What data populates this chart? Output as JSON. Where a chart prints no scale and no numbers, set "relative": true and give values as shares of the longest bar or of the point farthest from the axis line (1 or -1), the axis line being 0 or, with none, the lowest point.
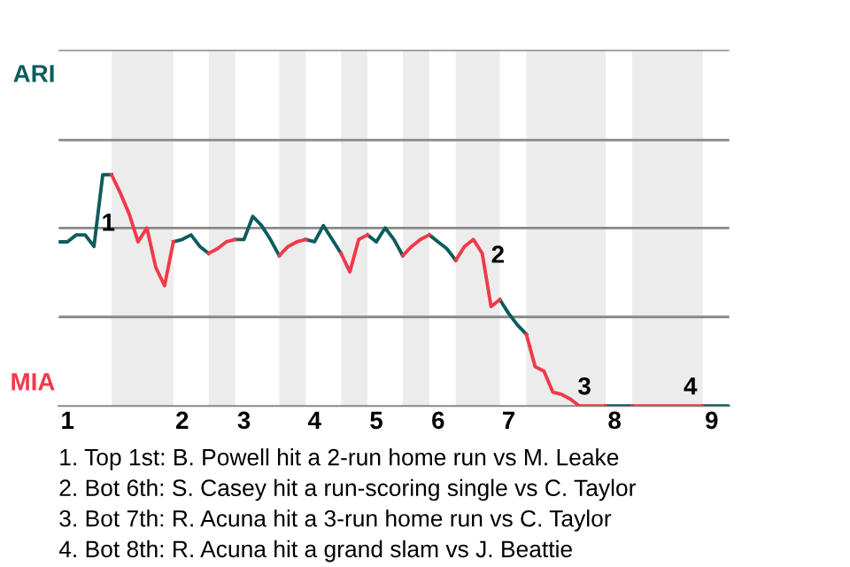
{
  "chart_data": {
    "type": "line",
    "relative": true,
    "categories": [
      null,
      "1",
      null,
      null,
      null,
      null,
      null,
      null,
      null,
      null,
      null,
      null,
      null,
      null,
      "2",
      null,
      null,
      null,
      null,
      null,
      null,
      "3",
      null,
      null,
      null,
      null,
      null,
      null,
      null,
      "4",
      null,
      null,
      null,
      null,
      null,
      null,
      "5",
      null,
      null,
      null,
      null,
      null,
      null,
      "6",
      null,
      null,
      null,
      null,
      null,
      null,
      null,
      "7",
      null,
      null,
      null,
      null,
      null,
      null,
      null,
      null,
      null,
      null,
      null,
      "8",
      null,
      null,
      null,
      null,
      null,
      null,
      null,
      null,
      null,
      null,
      "9",
      null,
      null
    ],
    "series": [
      {
        "color": "#0d5c5c",
        "values": [
          0.71,
          0.71,
          0.74,
          0.74,
          0.69,
          1,
          1,
          null,
          null,
          null,
          null,
          null,
          null,
          0.71,
          0.72,
          0.74,
          0.69,
          0.66,
          null,
          null,
          0.72,
          0.72,
          0.82,
          0.78,
          0.72,
          0.65,
          null,
          null,
          0.72,
          0.71,
          0.78,
          0.72,
          0.66,
          null,
          null,
          0.74,
          0.71,
          0.77,
          0.72,
          0.65,
          null,
          null,
          0.74,
          0.71,
          0.68,
          0.63,
          null,
          null,
          null,
          null,
          0.46,
          0.4,
          0.35,
          0.31,
          null,
          null,
          null,
          null,
          null,
          null,
          null,
          null,
          0,
          0,
          0,
          0,
          null,
          null,
          null,
          null,
          null,
          null,
          null,
          0,
          0,
          0,
          0
        ]
      },
      {
        "color": "#f03a4a",
        "values": [
          null,
          null,
          null,
          null,
          null,
          null,
          1,
          0.92,
          0.83,
          0.71,
          0.77,
          0.6,
          0.52,
          0.71,
          null,
          null,
          null,
          0.66,
          0.68,
          0.71,
          0.72,
          null,
          null,
          null,
          null,
          0.65,
          0.69,
          0.71,
          0.72,
          null,
          null,
          null,
          0.66,
          0.58,
          0.72,
          0.74,
          null,
          null,
          null,
          0.65,
          0.69,
          0.72,
          0.74,
          null,
          null,
          0.63,
          0.69,
          0.72,
          0.66,
          0.43,
          0.46,
          null,
          null,
          0.31,
          0.17,
          0.15,
          0.06,
          0.05,
          0.03,
          0,
          0,
          0,
          0,
          null,
          null,
          0,
          0,
          0,
          0,
          0,
          0,
          0,
          0,
          0,
          null,
          null,
          null
        ]
      }
    ],
    "ref_lines": [
      {
        "axis": "y",
        "value": 0.385,
        "color": "#888888"
      },
      {
        "axis": "y",
        "value": 0.77,
        "color": "#888888"
      },
      {
        "axis": "y",
        "value": 1.15,
        "color": "#888888"
      },
      {
        "axis": "y",
        "value": 1.54,
        "color": "#888888"
      }
    ],
    "annotations": [
      "ARI",
      "MIA",
      "1",
      "2",
      "3",
      "4",
      "1. Top 1st: B. Powell hit a 2-run home run vs M. Leake",
      "2. Bot 6th: S. Casey hit a run-scoring single vs C. Taylor",
      "3. Bot 7th: R. Acuna hit a 3-run home run vs C. Taylor",
      "4. Bot 8th: R. Acuna hit a grand slam vs J. Beattie"
    ]
  }
}
